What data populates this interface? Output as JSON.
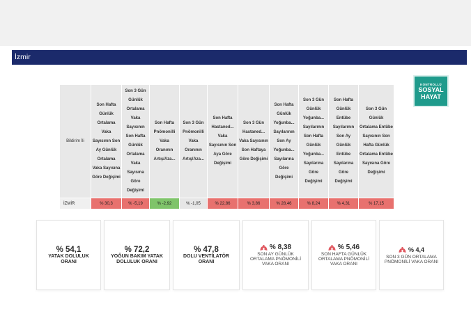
{
  "title": "İzmir",
  "logo": {
    "line1": "KONTROLLÜ",
    "line2": "SOSYAL",
    "line3": "HAYAT"
  },
  "table": {
    "headers": [
      "Bildirim İli",
      "Son Hafta Günlük Ortalama Vaka Sayısının Son Ay Günlük Ortalama Vaka Sayısına Göre Değişimi",
      "Son 3 Gün Günlük Ortalama Vaka Sayısının Son Hafta Günlük Ortalama Vaka Sayısına Göre Değişimi",
      "Son Hafta Pnömonilli Vaka Oranının Artış/Aza...",
      "Son 3 Gün Pnömonilli Vaka Oranının Artış/Aza...",
      "Son Hafta Hastaned... Vaka Sayısının Son Aya Göre Değişimi",
      "Son 3 Gün Hastaned... Vaka Sayısının Son Haftaya Göre Değişimi",
      "Son Hafta Günlük Yoğunba... Sayılarının Son Ay Yoğunba... Sayılarına Göre Değişimi",
      "Son 3 Gün Günlük Yoğunba... Sayılarının Son Hafta Günlük Yoğunba... Sayılarına Göre Değişimi",
      "Son Hafta Günlük Entübe Sayılarının Son Ay Günlük Entübe Sayılarına Göre Değişimi",
      "Son 3 Gün Günlük Ortalama Entübe Sayısının Son Hafta Günlük Ortalama Entübe Sayısına Göre Değişimi"
    ],
    "row": {
      "name": "İZMİR",
      "values": [
        "% 30,3",
        "% -5,19",
        "% -2,92",
        "% -1,05",
        "% 22,86",
        "% 3,86",
        "% 28,46",
        "% 8,24",
        "% 4,31",
        "% 17,15"
      ],
      "status": [
        "red",
        "red",
        "green",
        "grey",
        "red",
        "red",
        "red",
        "red",
        "red",
        "red"
      ]
    }
  },
  "colors": {
    "red": "#e8716e",
    "green": "#7fc46a",
    "grey": "#e6e6e6",
    "title_bar": "#1b2a6b",
    "logo": "#1f9b8c",
    "lung_icon": "#e0575f"
  },
  "cards": [
    {
      "value": "% 54,1",
      "label": "YATAK DOLULUK ORANI"
    },
    {
      "value": "% 72,2",
      "label": "YOĞUN BAKIM YATAK DOLULUK ORANI"
    },
    {
      "value": "% 47,8",
      "label": "DOLU VENTİLATÖR ORANI"
    },
    {
      "value": "% 8,38",
      "label": "SON AY GÜNLÜK ORTALAMA PNÖMONİLİ VAKA ORANI",
      "icon": "lungs-icon"
    },
    {
      "value": "% 5,46",
      "label": "SON HAFTA GÜNLÜK ORTALAMA PNÖMONİLİ VAKA ORANI",
      "icon": "lungs-icon"
    },
    {
      "value": "% 4,4",
      "label": "SON 3 GÜN ORTALAMA PNÖMONİLİ VAKA ORANI",
      "icon": "lungs-icon"
    }
  ]
}
